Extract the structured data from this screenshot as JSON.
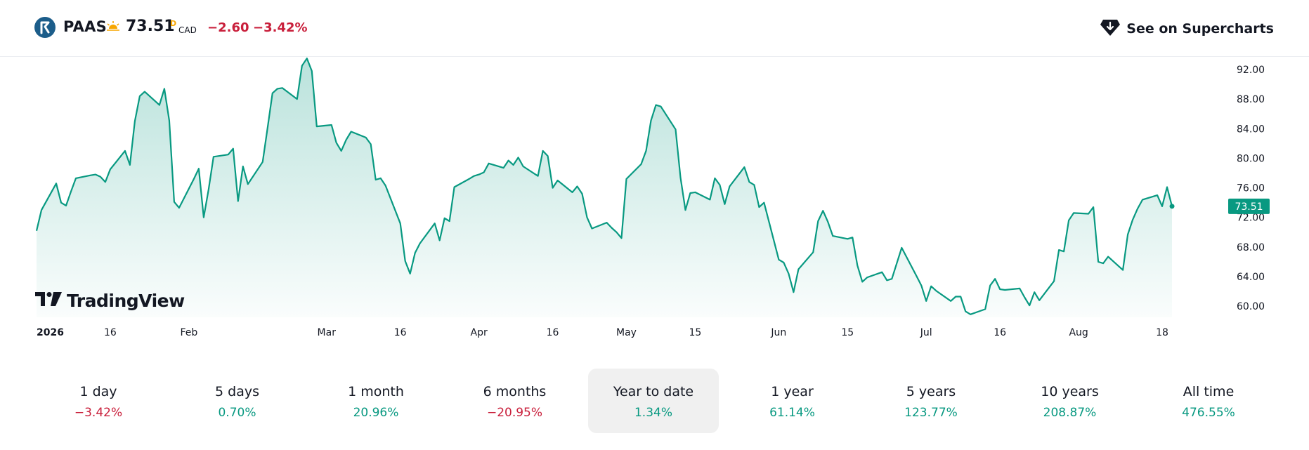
{
  "header": {
    "symbol": "PAAS",
    "market_status_icon": "sun-icon",
    "price": "73.51",
    "price_flag": "D",
    "currency": "CAD",
    "change_abs": "−2.60",
    "change_pct": "−3.42%",
    "supercharts_label": "See on Supercharts",
    "supercharts_icon": "supercharts-icon"
  },
  "colors": {
    "line": "#089981",
    "negative": "#c91f3b",
    "positive": "#089981",
    "selected_bg": "#f0f0f0"
  },
  "branding": {
    "logo_text": "TradingView"
  },
  "chart_data": {
    "type": "area",
    "x_tick_labels": [
      {
        "label": "2026",
        "date": "2026-01-01",
        "bold": true
      },
      {
        "label": "16",
        "date": "2026-01-16"
      },
      {
        "label": "Feb",
        "date": "2026-02-01"
      },
      {
        "label": "Mar",
        "date": "2026-03-01"
      },
      {
        "label": "16",
        "date": "2026-03-16"
      },
      {
        "label": "Apr",
        "date": "2026-04-01"
      },
      {
        "label": "16",
        "date": "2026-04-16"
      },
      {
        "label": "May",
        "date": "2026-05-01"
      },
      {
        "label": "15",
        "date": "2026-05-15"
      },
      {
        "label": "Jun",
        "date": "2026-06-01"
      },
      {
        "label": "15",
        "date": "2026-06-15"
      },
      {
        "label": "Jul",
        "date": "2026-07-01"
      },
      {
        "label": "16",
        "date": "2026-07-16"
      },
      {
        "label": "Aug",
        "date": "2026-08-01"
      },
      {
        "label": "18",
        "date": "2026-08-18"
      }
    ],
    "y_tick_labels": [
      "60.00",
      "64.00",
      "68.00",
      "72.00",
      "76.00",
      "80.00",
      "84.00",
      "88.00",
      "92.00"
    ],
    "y_ticks": [
      60,
      64,
      68,
      72,
      76,
      80,
      84,
      88,
      92
    ],
    "ylim": [
      58.5,
      93.8
    ],
    "xlim": [
      "2026-01-01",
      "2026-08-30"
    ],
    "last_value_label": "73.51",
    "last_value": 73.51,
    "series": [
      {
        "points": [
          [
            "2026-01-01",
            70.2
          ],
          [
            "2026-01-02",
            73.0
          ],
          [
            "2026-01-05",
            76.6
          ],
          [
            "2026-01-06",
            74.0
          ],
          [
            "2026-01-07",
            73.6
          ],
          [
            "2026-01-08",
            75.5
          ],
          [
            "2026-01-09",
            77.3
          ],
          [
            "2026-01-12",
            77.7
          ],
          [
            "2026-01-13",
            77.8
          ],
          [
            "2026-01-14",
            77.5
          ],
          [
            "2026-01-15",
            76.8
          ],
          [
            "2026-01-16",
            78.5
          ],
          [
            "2026-01-19",
            81.0
          ],
          [
            "2026-01-20",
            79.1
          ],
          [
            "2026-01-21",
            85.0
          ],
          [
            "2026-01-22",
            88.4
          ],
          [
            "2026-01-23",
            89.0
          ],
          [
            "2026-01-26",
            87.2
          ],
          [
            "2026-01-27",
            89.4
          ],
          [
            "2026-01-28",
            85.1
          ],
          [
            "2026-01-29",
            74.1
          ],
          [
            "2026-01-30",
            73.3
          ],
          [
            "2026-02-02",
            77.2
          ],
          [
            "2026-02-03",
            78.6
          ],
          [
            "2026-02-04",
            72.0
          ],
          [
            "2026-02-05",
            75.8
          ],
          [
            "2026-02-06",
            80.2
          ],
          [
            "2026-02-09",
            80.5
          ],
          [
            "2026-02-10",
            81.3
          ],
          [
            "2026-02-11",
            74.2
          ],
          [
            "2026-02-12",
            78.9
          ],
          [
            "2026-02-13",
            76.5
          ],
          [
            "2026-02-16",
            79.5
          ],
          [
            "2026-02-17",
            84.1
          ],
          [
            "2026-02-18",
            88.8
          ],
          [
            "2026-02-19",
            89.4
          ],
          [
            "2026-02-20",
            89.5
          ],
          [
            "2026-02-23",
            88.0
          ],
          [
            "2026-02-24",
            92.5
          ],
          [
            "2026-02-25",
            93.5
          ],
          [
            "2026-02-26",
            91.8
          ],
          [
            "2026-02-27",
            84.3
          ],
          [
            "2026-03-02",
            84.5
          ],
          [
            "2026-03-03",
            82.1
          ],
          [
            "2026-03-04",
            81.0
          ],
          [
            "2026-03-05",
            82.5
          ],
          [
            "2026-03-06",
            83.6
          ],
          [
            "2026-03-09",
            82.8
          ],
          [
            "2026-03-10",
            81.9
          ],
          [
            "2026-03-11",
            77.1
          ],
          [
            "2026-03-12",
            77.3
          ],
          [
            "2026-03-13",
            76.3
          ],
          [
            "2026-03-16",
            71.2
          ],
          [
            "2026-03-17",
            66.1
          ],
          [
            "2026-03-18",
            64.4
          ],
          [
            "2026-03-19",
            67.2
          ],
          [
            "2026-03-20",
            68.5
          ],
          [
            "2026-03-23",
            71.2
          ],
          [
            "2026-03-24",
            68.9
          ],
          [
            "2026-03-25",
            71.9
          ],
          [
            "2026-03-26",
            71.5
          ],
          [
            "2026-03-27",
            76.1
          ],
          [
            "2026-03-30",
            77.2
          ],
          [
            "2026-03-31",
            77.6
          ],
          [
            "2026-04-01",
            77.8
          ],
          [
            "2026-04-02",
            78.1
          ],
          [
            "2026-04-03",
            79.3
          ],
          [
            "2026-04-06",
            78.7
          ],
          [
            "2026-04-07",
            79.7
          ],
          [
            "2026-04-08",
            79.1
          ],
          [
            "2026-04-09",
            80.1
          ],
          [
            "2026-04-10",
            78.9
          ],
          [
            "2026-04-13",
            77.6
          ],
          [
            "2026-04-14",
            81.0
          ],
          [
            "2026-04-15",
            80.3
          ],
          [
            "2026-04-16",
            76.0
          ],
          [
            "2026-04-17",
            77.0
          ],
          [
            "2026-04-20",
            75.4
          ],
          [
            "2026-04-21",
            76.2
          ],
          [
            "2026-04-22",
            75.2
          ],
          [
            "2026-04-23",
            72.0
          ],
          [
            "2026-04-24",
            70.5
          ],
          [
            "2026-04-27",
            71.3
          ],
          [
            "2026-04-28",
            70.6
          ],
          [
            "2026-04-29",
            70.0
          ],
          [
            "2026-04-30",
            69.2
          ],
          [
            "2026-05-01",
            77.2
          ],
          [
            "2026-05-04",
            79.2
          ],
          [
            "2026-05-05",
            81.0
          ],
          [
            "2026-05-06",
            85.1
          ],
          [
            "2026-05-07",
            87.2
          ],
          [
            "2026-05-08",
            87.0
          ],
          [
            "2026-05-11",
            83.9
          ],
          [
            "2026-05-12",
            77.4
          ],
          [
            "2026-05-13",
            73.0
          ],
          [
            "2026-05-14",
            75.3
          ],
          [
            "2026-05-15",
            75.4
          ],
          [
            "2026-05-18",
            74.4
          ],
          [
            "2026-05-19",
            77.3
          ],
          [
            "2026-05-20",
            76.4
          ],
          [
            "2026-05-21",
            73.8
          ],
          [
            "2026-05-22",
            76.2
          ],
          [
            "2026-05-25",
            78.8
          ],
          [
            "2026-05-26",
            76.8
          ],
          [
            "2026-05-27",
            76.4
          ],
          [
            "2026-05-28",
            73.4
          ],
          [
            "2026-05-29",
            74.0
          ],
          [
            "2026-06-01",
            66.3
          ],
          [
            "2026-06-02",
            65.9
          ],
          [
            "2026-06-03",
            64.4
          ],
          [
            "2026-06-04",
            61.9
          ],
          [
            "2026-06-05",
            65.0
          ],
          [
            "2026-06-08",
            67.3
          ],
          [
            "2026-06-09",
            71.5
          ],
          [
            "2026-06-10",
            72.9
          ],
          [
            "2026-06-11",
            71.4
          ],
          [
            "2026-06-12",
            69.5
          ],
          [
            "2026-06-15",
            69.1
          ],
          [
            "2026-06-16",
            69.3
          ],
          [
            "2026-06-17",
            65.5
          ],
          [
            "2026-06-18",
            63.3
          ],
          [
            "2026-06-19",
            63.9
          ],
          [
            "2026-06-22",
            64.6
          ],
          [
            "2026-06-23",
            63.5
          ],
          [
            "2026-06-24",
            63.7
          ],
          [
            "2026-06-25",
            65.8
          ],
          [
            "2026-06-26",
            67.9
          ],
          [
            "2026-06-29",
            64.1
          ],
          [
            "2026-06-30",
            62.8
          ],
          [
            "2026-07-01",
            60.7
          ],
          [
            "2026-07-02",
            62.7
          ],
          [
            "2026-07-03",
            62.1
          ],
          [
            "2026-07-06",
            60.7
          ],
          [
            "2026-07-07",
            61.3
          ],
          [
            "2026-07-08",
            61.3
          ],
          [
            "2026-07-09",
            59.3
          ],
          [
            "2026-07-10",
            58.9
          ],
          [
            "2026-07-13",
            59.6
          ],
          [
            "2026-07-14",
            62.8
          ],
          [
            "2026-07-15",
            63.7
          ],
          [
            "2026-07-16",
            62.3
          ],
          [
            "2026-07-17",
            62.2
          ],
          [
            "2026-07-20",
            62.4
          ],
          [
            "2026-07-21",
            61.2
          ],
          [
            "2026-07-22",
            60.1
          ],
          [
            "2026-07-23",
            61.9
          ],
          [
            "2026-07-24",
            60.8
          ],
          [
            "2026-07-27",
            63.4
          ],
          [
            "2026-07-28",
            67.6
          ],
          [
            "2026-07-29",
            67.4
          ],
          [
            "2026-07-30",
            71.6
          ],
          [
            "2026-07-31",
            72.6
          ],
          [
            "2026-08-03",
            72.5
          ],
          [
            "2026-08-04",
            73.4
          ],
          [
            "2026-08-05",
            66.0
          ],
          [
            "2026-08-06",
            65.8
          ],
          [
            "2026-08-07",
            66.7
          ],
          [
            "2026-08-10",
            64.9
          ],
          [
            "2026-08-11",
            69.7
          ],
          [
            "2026-08-12",
            71.7
          ],
          [
            "2026-08-13",
            73.2
          ],
          [
            "2026-08-14",
            74.4
          ],
          [
            "2026-08-17",
            75.0
          ],
          [
            "2026-08-18",
            73.5
          ],
          [
            "2026-08-19",
            76.1
          ],
          [
            "2026-08-20",
            73.51
          ]
        ]
      }
    ]
  },
  "periods": [
    {
      "label": "1 day",
      "value": "−3.42%",
      "sign": "neg",
      "selected": false
    },
    {
      "label": "5 days",
      "value": "0.70%",
      "sign": "pos",
      "selected": false
    },
    {
      "label": "1 month",
      "value": "20.96%",
      "sign": "pos",
      "selected": false
    },
    {
      "label": "6 months",
      "value": "−20.95%",
      "sign": "neg",
      "selected": false
    },
    {
      "label": "Year to date",
      "value": "1.34%",
      "sign": "pos",
      "selected": true
    },
    {
      "label": "1 year",
      "value": "61.14%",
      "sign": "pos",
      "selected": false
    },
    {
      "label": "5 years",
      "value": "123.77%",
      "sign": "pos",
      "selected": false
    },
    {
      "label": "10 years",
      "value": "208.87%",
      "sign": "pos",
      "selected": false
    },
    {
      "label": "All time",
      "value": "476.55%",
      "sign": "pos",
      "selected": false
    }
  ]
}
